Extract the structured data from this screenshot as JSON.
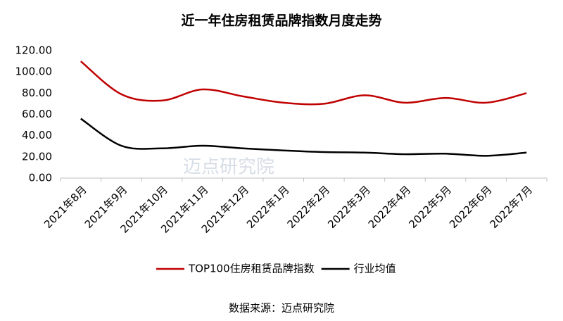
{
  "chart_data": {
    "type": "line",
    "title": "近一年住房租赁品牌指数月度走势",
    "categories": [
      "2021年8月",
      "2021年9月",
      "2021年10月",
      "2021年11月",
      "2021年12月",
      "2022年1月",
      "2022年2月",
      "2022年3月",
      "2022年4月",
      "2022年5月",
      "2022年6月",
      "2022年7月"
    ],
    "series": [
      {
        "name": "TOP100住房租赁品牌指数",
        "color": "#c00000",
        "values": [
          110,
          79,
          73,
          83.5,
          77,
          71,
          70,
          78,
          71,
          75.5,
          71,
          80
        ]
      },
      {
        "name": "行业均值",
        "color": "#000000",
        "values": [
          56,
          30.5,
          28,
          30.5,
          28,
          26,
          24.5,
          24,
          22.5,
          23,
          21,
          24
        ]
      }
    ],
    "ylim": [
      0,
      120
    ],
    "yticks": [
      {
        "value": 0,
        "label": "0.00"
      },
      {
        "value": 20,
        "label": "20.00"
      },
      {
        "value": 40,
        "label": "40.00"
      },
      {
        "value": 60,
        "label": "60.00"
      },
      {
        "value": 80,
        "label": "80.00"
      },
      {
        "value": 100,
        "label": "100.00"
      },
      {
        "value": 120,
        "label": "120.00"
      }
    ],
    "grid": false,
    "watermark": "迈点研究院",
    "source": "数据来源：迈点研究院"
  }
}
